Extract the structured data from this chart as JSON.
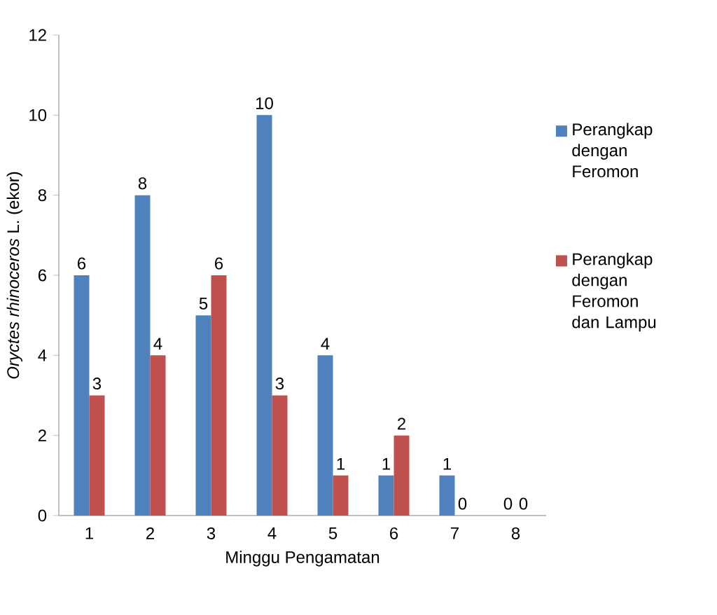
{
  "chart_data": {
    "type": "bar",
    "xlabel": "Minggu Pengamatan",
    "ylabel": "*Oryctes rhinoceros* L. (ekor)",
    "categories": [
      "1",
      "2",
      "3",
      "4",
      "5",
      "6",
      "7",
      "8"
    ],
    "series": [
      {
        "name": "Perangkap dengan Feromon",
        "color": "#4f81bd",
        "values": [
          6,
          8,
          5,
          10,
          4,
          1,
          1,
          0
        ]
      },
      {
        "name": "Perangkap dengan Feromon dan Lampu",
        "color": "#c0504d",
        "values": [
          3,
          4,
          6,
          3,
          1,
          2,
          0,
          0
        ]
      }
    ],
    "ylim": [
      0,
      12
    ],
    "yticks": [
      0,
      2,
      4,
      6,
      8,
      10,
      12
    ],
    "data_labels": true,
    "grid": false,
    "legend": "right"
  }
}
